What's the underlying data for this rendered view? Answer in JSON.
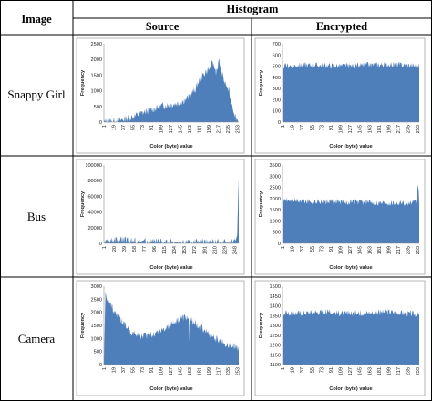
{
  "table": {
    "header_image": "Image",
    "header_histogram": "Histogram",
    "header_source": "Source",
    "header_encrypted": "Encrypted",
    "rows": [
      "Snappy Girl",
      "Bus",
      "Camera"
    ]
  },
  "colors": {
    "fill": "#4f7fba",
    "plot_border": "#a6a6a6"
  },
  "chart_data": [
    {
      "id": "snappy-source",
      "type": "area",
      "row": "Snappy Girl",
      "column": "Source",
      "xlabel": "Color (byte) value",
      "ylabel": "Frequency",
      "xticks": [
        1,
        19,
        37,
        55,
        73,
        91,
        109,
        127,
        145,
        163,
        181,
        199,
        217,
        235,
        253
      ],
      "yticks": [
        0,
        500,
        1000,
        1500,
        2000,
        2500
      ],
      "ylim": [
        0,
        2500
      ],
      "x": [
        0,
        10,
        20,
        30,
        45,
        60,
        80,
        95,
        110,
        125,
        140,
        150,
        158,
        165,
        172,
        178,
        185,
        192,
        200,
        206,
        212,
        218,
        224,
        230,
        236,
        242,
        248,
        255
      ],
      "y": [
        0,
        20,
        30,
        60,
        130,
        210,
        340,
        430,
        520,
        560,
        600,
        680,
        760,
        900,
        1020,
        1250,
        1450,
        1600,
        1700,
        1900,
        1600,
        1950,
        1500,
        1200,
        1000,
        600,
        200,
        20
      ]
    },
    {
      "id": "snappy-encrypted",
      "type": "area",
      "row": "Snappy Girl",
      "column": "Encrypted",
      "xlabel": "Color (byte) value",
      "ylabel": "Frequency",
      "xticks": [
        1,
        19,
        37,
        55,
        73,
        91,
        109,
        127,
        145,
        163,
        181,
        199,
        217,
        235,
        253
      ],
      "yticks": [
        0,
        100,
        200,
        300,
        400,
        500,
        600,
        700
      ],
      "ylim": [
        0,
        700
      ],
      "x": [
        0,
        40,
        80,
        120,
        160,
        200,
        240,
        255
      ],
      "y": [
        500,
        510,
        505,
        500,
        510,
        515,
        505,
        500
      ]
    },
    {
      "id": "bus-source",
      "type": "area",
      "row": "Bus",
      "column": "Source",
      "xlabel": "Color (byte) value",
      "ylabel": "Frequency",
      "xticks": [
        1,
        20,
        39,
        58,
        77,
        96,
        115,
        134,
        153,
        172,
        191,
        210,
        229,
        248
      ],
      "yticks": [
        0,
        20000,
        40000,
        60000,
        80000,
        100000
      ],
      "ylim": [
        0,
        100000
      ],
      "x": [
        0,
        10,
        20,
        30,
        40,
        50,
        60,
        75,
        90,
        110,
        130,
        160,
        190,
        220,
        240,
        248,
        252,
        255
      ],
      "y": [
        1500,
        2500,
        3500,
        5000,
        4000,
        3000,
        3500,
        2500,
        2000,
        1500,
        1200,
        1000,
        1000,
        1200,
        2000,
        3000,
        15000,
        80000
      ]
    },
    {
      "id": "bus-encrypted",
      "type": "area",
      "row": "Bus",
      "column": "Encrypted",
      "xlabel": "Color (byte) value",
      "ylabel": "Frequency",
      "xticks": [
        1,
        19,
        37,
        55,
        73,
        91,
        109,
        127,
        145,
        163,
        181,
        199,
        217,
        235,
        253
      ],
      "yticks": [
        0,
        500,
        1000,
        1500,
        2000,
        2500,
        3000,
        3500
      ],
      "ylim": [
        0,
        3500
      ],
      "x": [
        0,
        30,
        60,
        100,
        140,
        180,
        220,
        250,
        253,
        255
      ],
      "y": [
        1950,
        1900,
        1870,
        1850,
        1840,
        1830,
        1820,
        1800,
        2700,
        1800
      ]
    },
    {
      "id": "camera-source",
      "type": "area",
      "row": "Camera",
      "column": "Source",
      "xlabel": "Color (byte) value",
      "ylabel": "Frequency",
      "xticks": [
        1,
        19,
        37,
        55,
        73,
        91,
        109,
        127,
        145,
        163,
        181,
        199,
        217,
        235,
        253
      ],
      "yticks": [
        0,
        500,
        1000,
        1500,
        2000,
        2500,
        3000
      ],
      "ylim": [
        0,
        3000
      ],
      "x": [
        0,
        3,
        8,
        15,
        25,
        40,
        55,
        70,
        90,
        110,
        130,
        145,
        155,
        160,
        162,
        164,
        170,
        185,
        200,
        215,
        230,
        245,
        255
      ],
      "y": [
        300,
        2700,
        2400,
        2200,
        1900,
        1500,
        1200,
        1100,
        1150,
        1350,
        1600,
        1750,
        1800,
        1750,
        1000,
        1700,
        1650,
        1400,
        1150,
        950,
        800,
        700,
        650
      ]
    },
    {
      "id": "camera-encrypted",
      "type": "area",
      "row": "Camera",
      "column": "Encrypted",
      "xlabel": "Color (byte) value",
      "ylabel": "Frequency",
      "xticks": [
        1,
        19,
        37,
        55,
        73,
        91,
        109,
        127,
        145,
        163,
        181,
        199,
        217,
        235,
        253
      ],
      "yticks": [
        1100,
        1150,
        1200,
        1250,
        1300,
        1350,
        1400,
        1450,
        1500
      ],
      "ylim": [
        1100,
        1500
      ],
      "x": [
        0,
        40,
        80,
        120,
        160,
        200,
        240,
        255
      ],
      "y": [
        1360,
        1365,
        1370,
        1360,
        1365,
        1370,
        1360,
        1355
      ]
    }
  ]
}
